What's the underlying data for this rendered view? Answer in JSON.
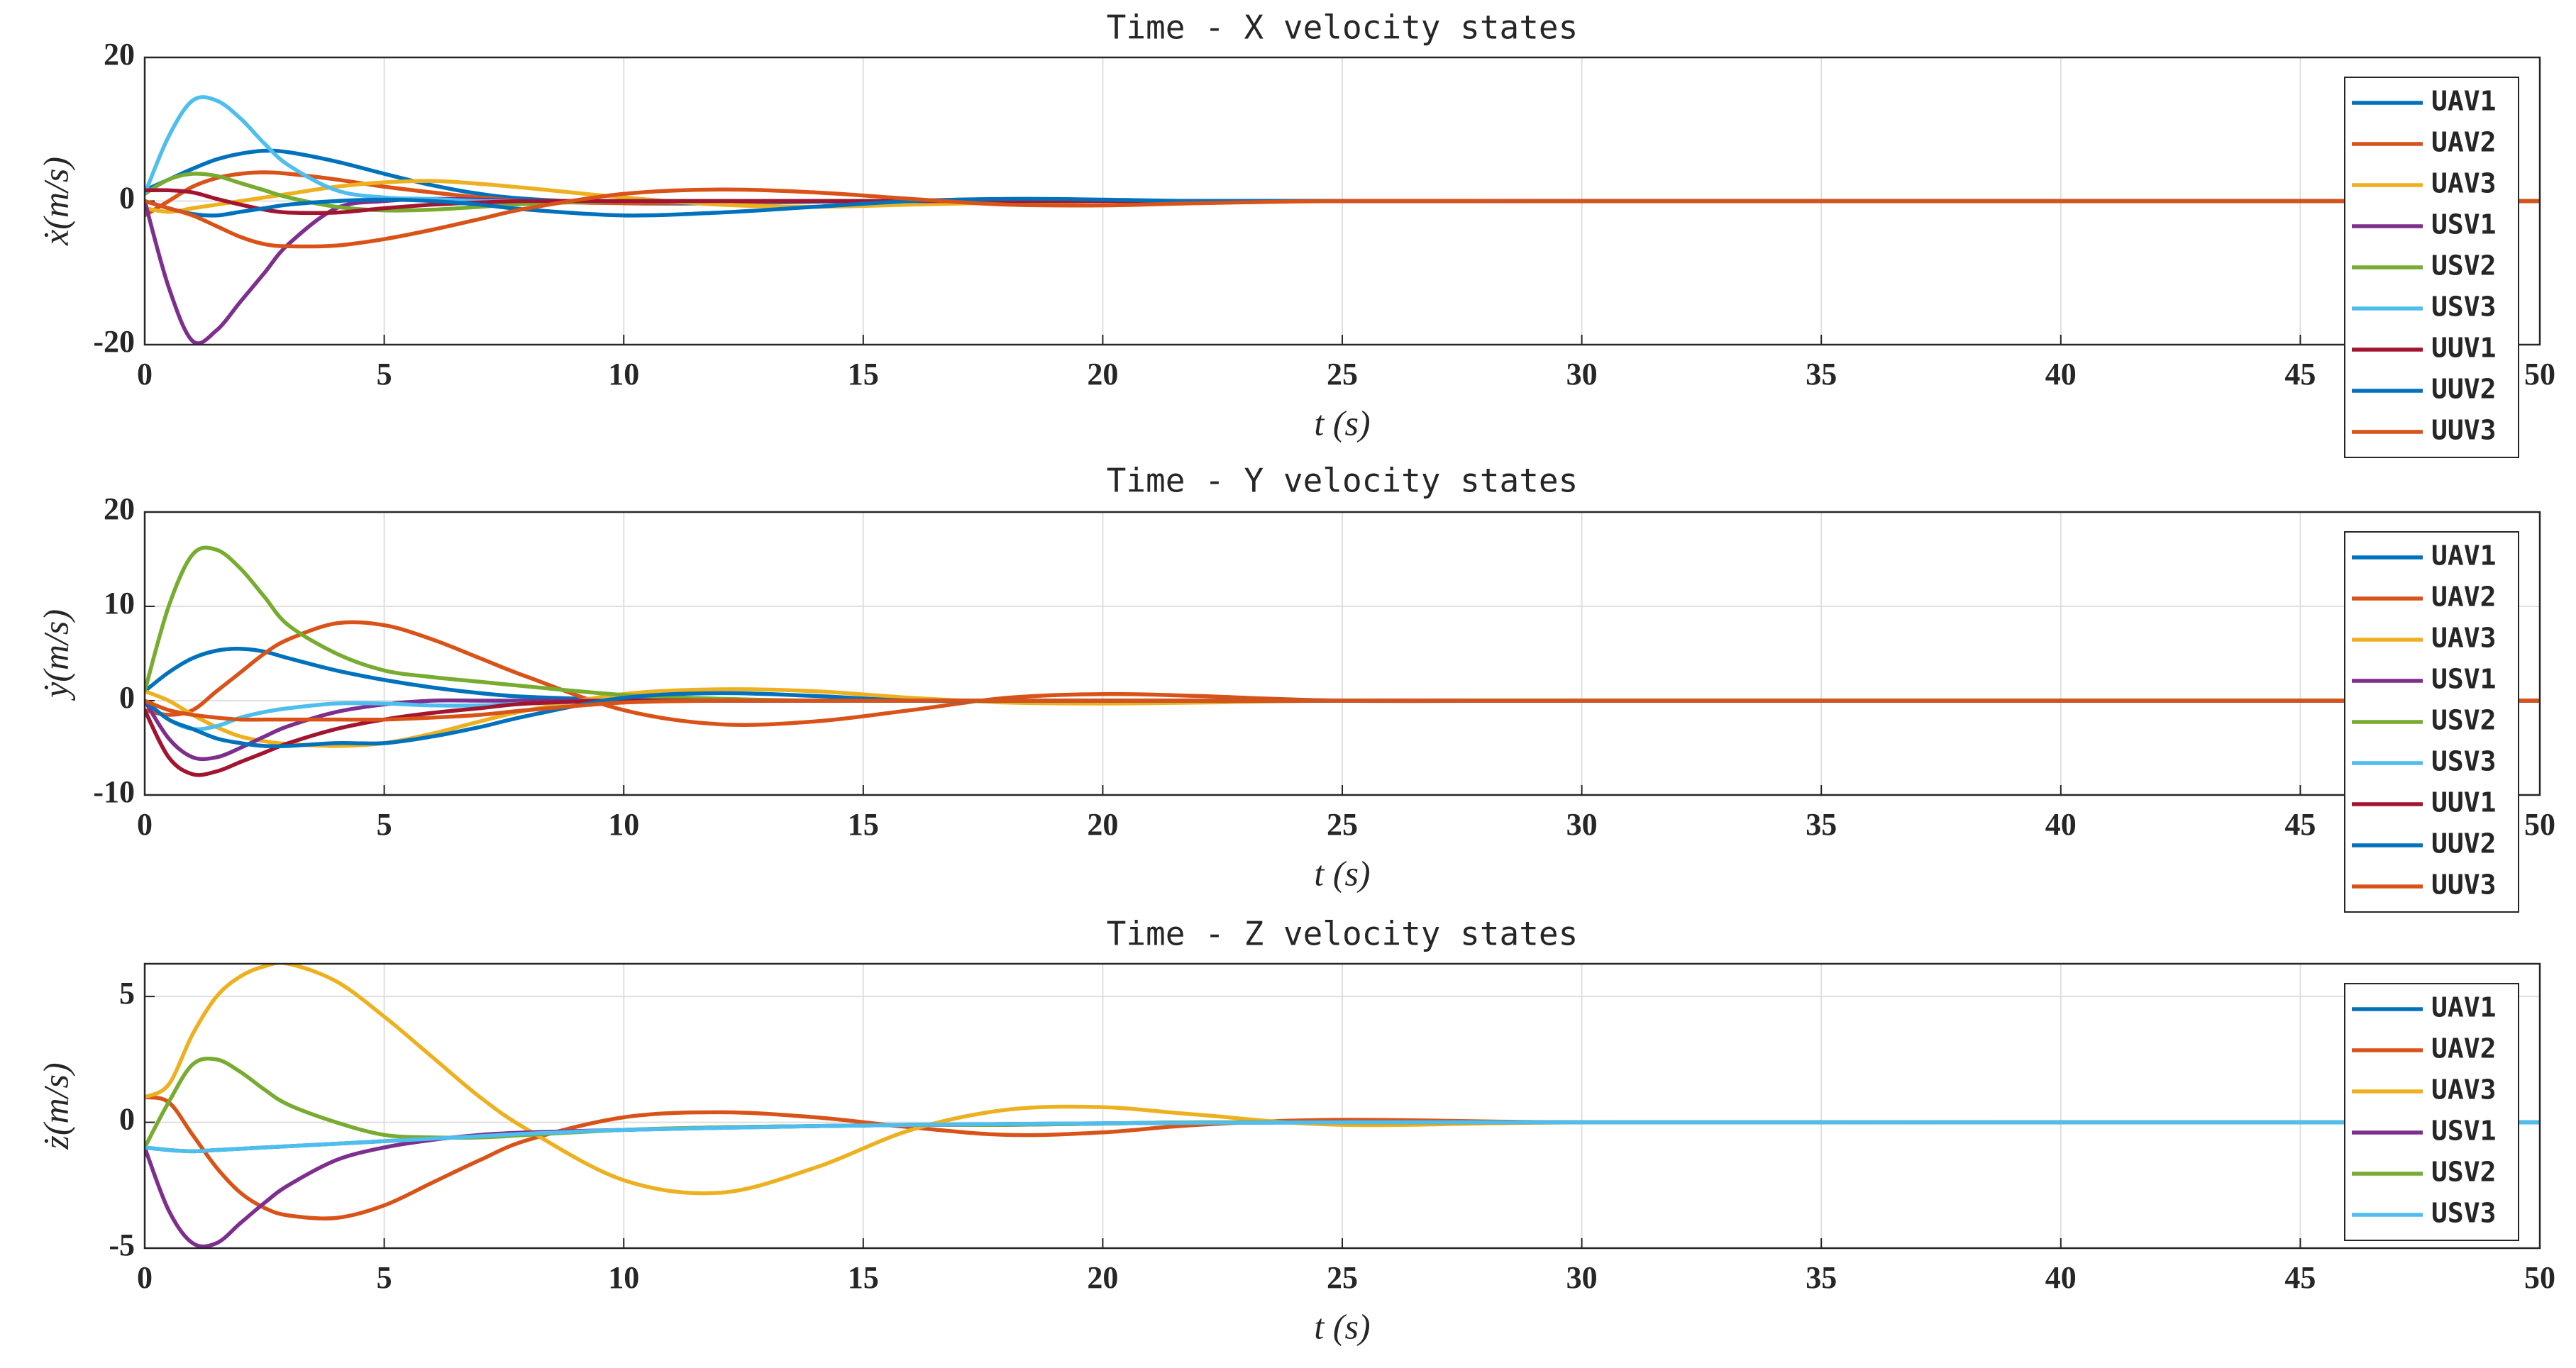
{
  "chart_data": [
    {
      "type": "line",
      "title": "Time - X velocity states",
      "xlabel": "t (s)",
      "ylabel": "ẋ(m/s)",
      "x": [
        0,
        0.5,
        1,
        1.5,
        2,
        2.5,
        3,
        4,
        5,
        6,
        7,
        8,
        10,
        12,
        14,
        16,
        18,
        20,
        22,
        25,
        30,
        40,
        50
      ],
      "xlim": [
        0,
        50
      ],
      "xticks": [
        0,
        5,
        10,
        15,
        20,
        25,
        30,
        35,
        40,
        45,
        50
      ],
      "ylim": [
        -20,
        20
      ],
      "yticks": [
        -20,
        0,
        20
      ],
      "grid": true,
      "legend": "upper right",
      "series": [
        {
          "name": "UAV1",
          "color": "#0072BD",
          "values": [
            1.5,
            3,
            4.5,
            5.8,
            6.6,
            7,
            6.8,
            5.5,
            3.8,
            2.2,
            1,
            0.3,
            -0.3,
            -0.3,
            -0.1,
            0,
            0,
            0,
            0,
            0,
            0,
            0,
            0
          ]
        },
        {
          "name": "UAV2",
          "color": "#D95319",
          "values": [
            -2,
            0,
            2,
            3.2,
            3.8,
            4,
            3.8,
            3,
            2,
            1.2,
            0.5,
            0,
            -0.3,
            -0.2,
            0,
            0,
            0,
            0,
            0,
            0,
            0,
            0,
            0
          ]
        },
        {
          "name": "UAV3",
          "color": "#EDB120",
          "values": [
            -1,
            -1.5,
            -1,
            -0.5,
            0,
            0.5,
            1,
            2,
            2.6,
            2.8,
            2.4,
            1.8,
            0.5,
            -0.5,
            -0.8,
            -0.5,
            -0.2,
            0,
            0,
            0,
            0,
            0,
            0
          ]
        },
        {
          "name": "USV1",
          "color": "#7E2F8E",
          "values": [
            0,
            -12,
            -19.5,
            -18,
            -14,
            -10,
            -6,
            -1,
            0,
            0.3,
            0.2,
            0,
            0,
            0,
            0,
            0,
            0,
            0,
            0,
            0,
            0,
            0,
            0
          ]
        },
        {
          "name": "USV2",
          "color": "#77AC30",
          "values": [
            1,
            3,
            3.8,
            3.5,
            2.5,
            1.5,
            0.5,
            -0.8,
            -1.3,
            -1.2,
            -0.8,
            -0.4,
            0,
            0,
            0,
            0,
            0,
            0,
            0,
            0,
            0,
            0,
            0
          ]
        },
        {
          "name": "USV3",
          "color": "#4DBEEE",
          "values": [
            1,
            9,
            14,
            14,
            11.5,
            8,
            5,
            1.5,
            0.5,
            0.3,
            0,
            0,
            0,
            0,
            0,
            0,
            0,
            0,
            0,
            0,
            0,
            0,
            0
          ]
        },
        {
          "name": "UUV1",
          "color": "#A2142F",
          "values": [
            1.5,
            1.5,
            1.2,
            0.3,
            -0.5,
            -1.2,
            -1.6,
            -1.6,
            -1,
            -0.5,
            -0.2,
            0,
            0,
            0,
            0,
            0,
            0,
            0,
            0,
            0,
            0,
            0,
            0
          ]
        },
        {
          "name": "UUV2",
          "color": "#0072BD",
          "values": [
            0,
            -1,
            -1.8,
            -2,
            -1.5,
            -1,
            -0.5,
            0,
            0.2,
            0,
            -0.5,
            -1.2,
            -2,
            -1.6,
            -0.8,
            0,
            0.3,
            0.2,
            0,
            0,
            0,
            0,
            0
          ]
        },
        {
          "name": "UUV3",
          "color": "#D95319",
          "values": [
            0,
            -1,
            -2,
            -3.5,
            -5,
            -6,
            -6.3,
            -6.2,
            -5.3,
            -4,
            -2.5,
            -1,
            1,
            1.6,
            1.2,
            0.3,
            -0.5,
            -0.6,
            -0.3,
            0,
            0,
            0,
            0
          ]
        }
      ]
    },
    {
      "type": "line",
      "title": "Time - Y velocity states",
      "xlabel": "t (s)",
      "ylabel": "ẏ(m/s)",
      "x": [
        0,
        0.5,
        1,
        1.5,
        2,
        2.5,
        3,
        4,
        5,
        6,
        7,
        8,
        10,
        12,
        14,
        16,
        18,
        20,
        22,
        25,
        30,
        40,
        50
      ],
      "xlim": [
        0,
        50
      ],
      "xticks": [
        0,
        5,
        10,
        15,
        20,
        25,
        30,
        35,
        40,
        45,
        50
      ],
      "ylim": [
        -10,
        20
      ],
      "yticks": [
        -10,
        0,
        10,
        20
      ],
      "grid": true,
      "legend": "upper right",
      "series": [
        {
          "name": "UAV1",
          "color": "#0072BD",
          "values": [
            1,
            3,
            4.5,
            5.3,
            5.5,
            5.2,
            4.5,
            3.2,
            2.2,
            1.4,
            0.8,
            0.4,
            0.1,
            0,
            0,
            0,
            0,
            0,
            0,
            0,
            0,
            0,
            0
          ]
        },
        {
          "name": "UAV2",
          "color": "#D95319",
          "values": [
            -1,
            -1.5,
            -1,
            1,
            3,
            5,
            6.5,
            8.2,
            8,
            6.5,
            4.5,
            2.5,
            -1,
            -2.5,
            -2.2,
            -1,
            0.3,
            0.7,
            0.5,
            0,
            0,
            0,
            0
          ]
        },
        {
          "name": "UAV3",
          "color": "#EDB120",
          "values": [
            1,
            0,
            -1.5,
            -2.8,
            -3.8,
            -4.3,
            -4.6,
            -4.8,
            -4.5,
            -3.5,
            -2.2,
            -1,
            0.7,
            1.2,
            1,
            0.3,
            -0.2,
            -0.3,
            -0.2,
            0,
            0,
            0,
            0
          ]
        },
        {
          "name": "USV1",
          "color": "#7E2F8E",
          "values": [
            0,
            -4,
            -6,
            -6,
            -5,
            -3.8,
            -2.7,
            -1.2,
            -0.4,
            0,
            0,
            0,
            0,
            0,
            0,
            0,
            0,
            0,
            0,
            0,
            0,
            0,
            0
          ]
        },
        {
          "name": "USV2",
          "color": "#77AC30",
          "values": [
            1,
            10,
            15.5,
            16,
            14,
            11,
            8,
            5,
            3.2,
            2.5,
            2,
            1.5,
            0.6,
            0.2,
            0,
            0,
            0,
            0,
            0,
            0,
            0,
            0,
            0
          ]
        },
        {
          "name": "USV3",
          "color": "#4DBEEE",
          "values": [
            0,
            -2,
            -3,
            -2.7,
            -1.8,
            -1.2,
            -0.8,
            -0.3,
            -0.3,
            -0.5,
            -0.5,
            -0.3,
            0,
            0,
            0,
            0,
            0,
            0,
            0,
            0,
            0,
            0,
            0
          ]
        },
        {
          "name": "UUV1",
          "color": "#A2142F",
          "values": [
            -1,
            -6,
            -7.8,
            -7.5,
            -6.5,
            -5.5,
            -4.5,
            -3,
            -2,
            -1.3,
            -0.8,
            -0.3,
            0,
            0,
            0,
            0,
            0,
            0,
            0,
            0,
            0,
            0,
            0
          ]
        },
        {
          "name": "UUV2",
          "color": "#0072BD",
          "values": [
            0,
            -2,
            -3,
            -4,
            -4.5,
            -4.8,
            -4.8,
            -4.5,
            -4.5,
            -3.8,
            -2.8,
            -1.6,
            0.3,
            0.8,
            0.5,
            0,
            0,
            0,
            0,
            0,
            0,
            0,
            0
          ]
        },
        {
          "name": "UUV3",
          "color": "#D95319",
          "values": [
            0,
            -1,
            -1.5,
            -1.8,
            -2,
            -2,
            -2,
            -2,
            -2,
            -1.8,
            -1.5,
            -1,
            -0.2,
            0,
            0,
            0,
            0,
            0,
            0,
            0,
            0,
            0,
            0
          ]
        }
      ]
    },
    {
      "type": "line",
      "title": "Time - Z velocity states",
      "xlabel": "t (s)",
      "ylabel": "ż(m/s)",
      "x": [
        0,
        0.5,
        1,
        1.5,
        2,
        2.5,
        3,
        4,
        5,
        6,
        7,
        8,
        10,
        12,
        14,
        16,
        18,
        20,
        22,
        25,
        30,
        40,
        50
      ],
      "xlim": [
        0,
        50
      ],
      "xticks": [
        0,
        5,
        10,
        15,
        20,
        25,
        30,
        35,
        40,
        45,
        50
      ],
      "ylim": [
        -5,
        6.3
      ],
      "yticks": [
        -5,
        0,
        5
      ],
      "grid": true,
      "legend": "upper right",
      "series": [
        {
          "name": "UAV1",
          "color": "#0072BD",
          "values": [
            -1,
            -1.1,
            -1.15,
            -1.1,
            -1.05,
            -1,
            -0.95,
            -0.85,
            -0.75,
            -0.65,
            -0.55,
            -0.45,
            -0.3,
            -0.22,
            -0.15,
            -0.1,
            -0.07,
            -0.04,
            -0.02,
            0,
            0,
            0,
            0
          ]
        },
        {
          "name": "UAV2",
          "color": "#D95319",
          "values": [
            1,
            0.8,
            -0.5,
            -1.8,
            -2.8,
            -3.4,
            -3.7,
            -3.8,
            -3.3,
            -2.4,
            -1.5,
            -0.7,
            0.2,
            0.4,
            0.2,
            -0.2,
            -0.5,
            -0.4,
            -0.1,
            0.1,
            0,
            0,
            0
          ]
        },
        {
          "name": "UAV3",
          "color": "#EDB120",
          "values": [
            1,
            1.5,
            3.5,
            5,
            5.8,
            6.2,
            6.3,
            5.6,
            4.2,
            2.6,
            1,
            -0.3,
            -2.3,
            -2.8,
            -1.8,
            -0.3,
            0.5,
            0.6,
            0.3,
            -0.1,
            0,
            0,
            0
          ]
        },
        {
          "name": "USV1",
          "color": "#7E2F8E",
          "values": [
            -1,
            -3.5,
            -4.8,
            -4.8,
            -4,
            -3.2,
            -2.5,
            -1.5,
            -1,
            -0.7,
            -0.5,
            -0.4,
            -0.3,
            -0.2,
            -0.15,
            -0.1,
            -0.1,
            -0.05,
            0,
            0,
            0,
            0,
            0
          ]
        },
        {
          "name": "USV2",
          "color": "#77AC30",
          "values": [
            -1,
            0.8,
            2.3,
            2.5,
            2,
            1.3,
            0.7,
            0,
            -0.5,
            -0.6,
            -0.6,
            -0.5,
            -0.3,
            -0.2,
            -0.15,
            -0.1,
            -0.1,
            -0.05,
            0,
            0,
            0,
            0,
            0
          ]
        },
        {
          "name": "USV3",
          "color": "#4DBEEE",
          "values": [
            -1,
            -1.1,
            -1.15,
            -1.1,
            -1.05,
            -1,
            -0.95,
            -0.85,
            -0.75,
            -0.65,
            -0.55,
            -0.45,
            -0.3,
            -0.22,
            -0.15,
            -0.1,
            -0.07,
            -0.04,
            -0.02,
            0,
            0,
            0,
            0
          ]
        }
      ]
    }
  ]
}
